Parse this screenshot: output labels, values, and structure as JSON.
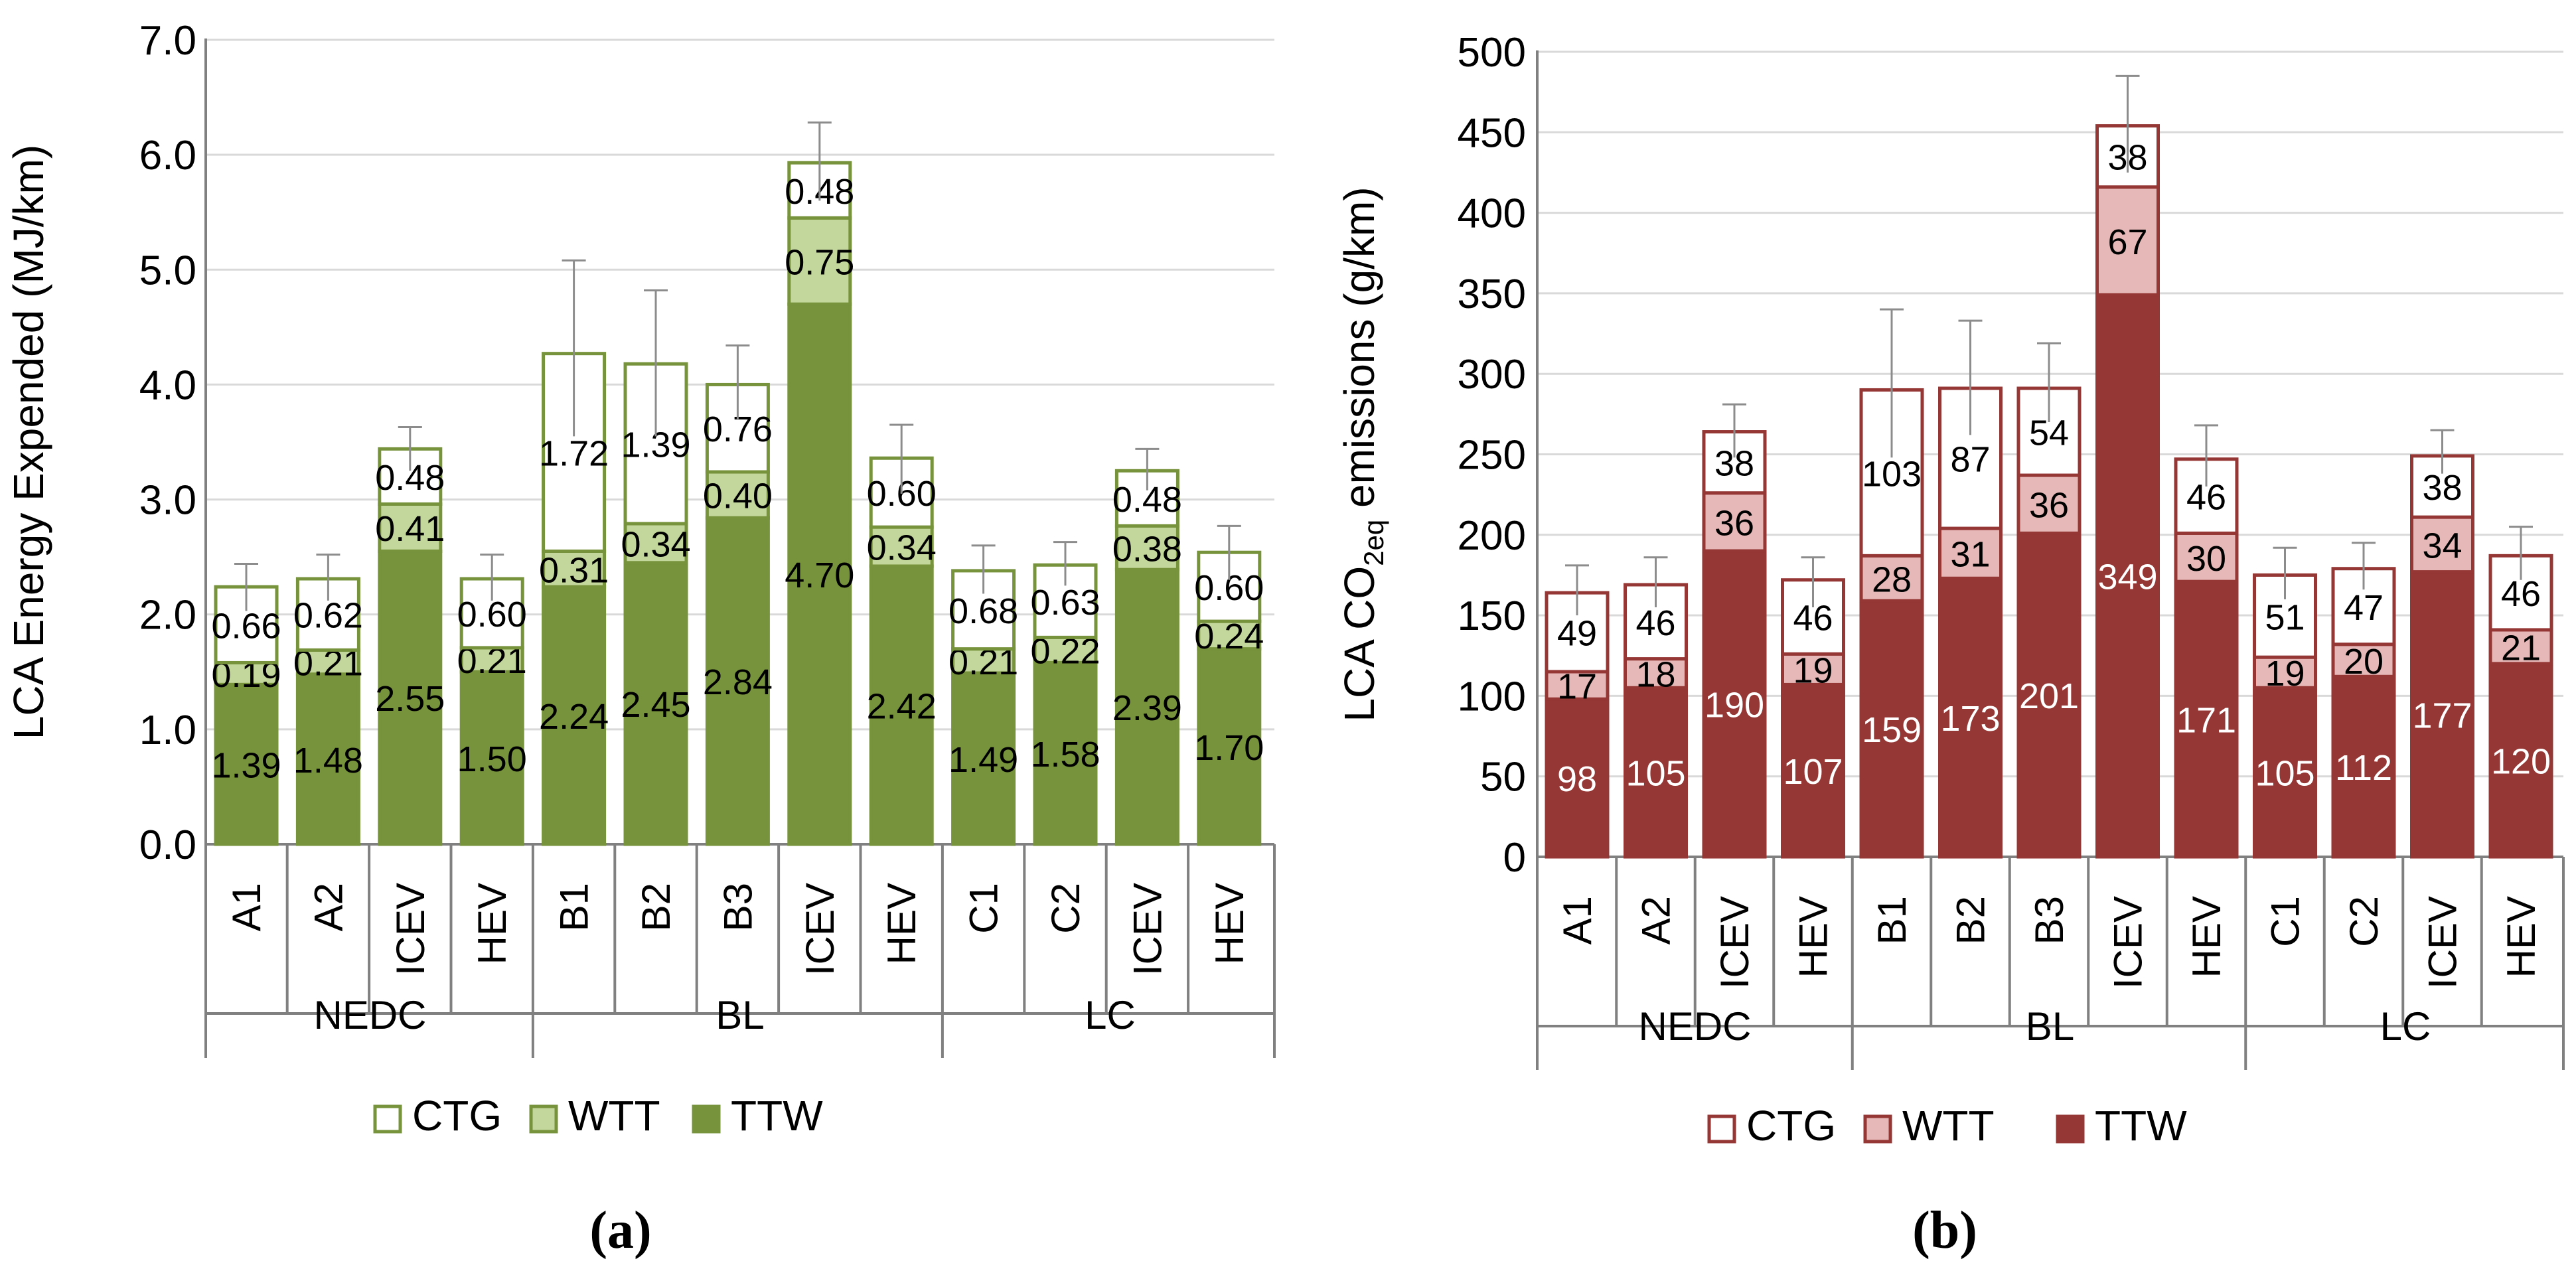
{
  "chart_data": [
    {
      "type": "bar",
      "stacked": true,
      "panel_label": "(a)",
      "ylabel": "LCA Energy Expended (MJ/km)",
      "ylim": [
        0,
        7
      ],
      "yticks": [
        "0.0",
        "1.0",
        "2.0",
        "3.0",
        "4.0",
        "5.0",
        "6.0",
        "7.0"
      ],
      "grid": true,
      "legend_position": "bottom",
      "groups": [
        {
          "name": "NEDC",
          "categories": [
            "A1",
            "A2",
            "ICEV",
            "HEV"
          ]
        },
        {
          "name": "BL",
          "categories": [
            "B1",
            "B2",
            "B3",
            "ICEV",
            "HEV"
          ]
        },
        {
          "name": "LC",
          "categories": [
            "C1",
            "C2",
            "ICEV",
            "HEV"
          ]
        }
      ],
      "categories": [
        "A1",
        "A2",
        "ICEV",
        "HEV",
        "B1",
        "B2",
        "B3",
        "ICEV",
        "HEV",
        "C1",
        "C2",
        "ICEV",
        "HEV"
      ],
      "series": [
        {
          "name": "TTW",
          "values": [
            1.39,
            1.48,
            2.55,
            1.5,
            2.24,
            2.45,
            2.84,
            4.7,
            2.42,
            1.49,
            1.58,
            2.39,
            1.7
          ],
          "labels": [
            "1.39",
            "1.48",
            "2.55",
            "1.50",
            "2.24",
            "2.45",
            "2.84",
            "4.70",
            "2.42",
            "1.49",
            "1.58",
            "2.39",
            "1.70"
          ]
        },
        {
          "name": "WTT",
          "values": [
            0.19,
            0.21,
            0.41,
            0.21,
            0.31,
            0.34,
            0.4,
            0.75,
            0.34,
            0.21,
            0.22,
            0.38,
            0.24
          ],
          "labels": [
            "0.19",
            "0.21",
            "0.41",
            "0.21",
            "0.31",
            "0.34",
            "0.40",
            "0.75",
            "0.34",
            "0.21",
            "0.22",
            "0.38",
            "0.24"
          ]
        },
        {
          "name": "CTG",
          "values": [
            0.66,
            0.62,
            0.48,
            0.6,
            1.72,
            1.39,
            0.76,
            0.48,
            0.6,
            0.68,
            0.63,
            0.48,
            0.6
          ],
          "labels": [
            "0.66",
            "0.62",
            "0.48",
            "0.60",
            "1.72",
            "1.39",
            "0.76",
            "0.48",
            "0.60",
            "0.68",
            "0.63",
            "0.48",
            "0.60"
          ]
        }
      ],
      "error_upper": [
        2.44,
        2.52,
        3.63,
        2.52,
        5.08,
        4.82,
        4.34,
        6.28,
        3.65,
        2.6,
        2.63,
        3.44,
        2.77
      ],
      "error_lower": [
        2.03,
        2.12,
        3.25,
        2.12,
        3.55,
        3.55,
        3.7,
        5.6,
        3.05,
        2.18,
        2.25,
        3.08,
        2.3
      ],
      "legend": [
        {
          "name": "CTG",
          "label": "CTG"
        },
        {
          "name": "WTT",
          "label": "WTT"
        },
        {
          "name": "TTW",
          "label": "TTW"
        }
      ],
      "colors": {
        "TTW": "#77933c",
        "WTT": "#c3d69b",
        "CTG": "#ffffff",
        "edge": "#77933c",
        "error": "#8c8c8c",
        "grid": "#d9d9d9",
        "axis": "#808080"
      }
    },
    {
      "type": "bar",
      "stacked": true,
      "panel_label": "(b)",
      "ylabel": "LCA CO",
      "ylabel_sub": "2eq",
      "ylabel_suffix": " emissions (g/km)",
      "ylim": [
        0,
        500
      ],
      "yticks": [
        "0",
        "50",
        "100",
        "150",
        "200",
        "250",
        "300",
        "350",
        "400",
        "450",
        "500"
      ],
      "grid": true,
      "legend_position": "bottom",
      "groups": [
        {
          "name": "NEDC",
          "categories": [
            "A1",
            "A2",
            "ICEV",
            "HEV"
          ]
        },
        {
          "name": "BL",
          "categories": [
            "B1",
            "B2",
            "B3",
            "ICEV",
            "HEV"
          ]
        },
        {
          "name": "LC",
          "categories": [
            "C1",
            "C2",
            "ICEV",
            "HEV"
          ]
        }
      ],
      "categories": [
        "A1",
        "A2",
        "ICEV",
        "HEV",
        "B1",
        "B2",
        "B3",
        "ICEV",
        "HEV",
        "C1",
        "C2",
        "ICEV",
        "HEV"
      ],
      "series": [
        {
          "name": "TTW",
          "values": [
            98,
            105,
            190,
            107,
            159,
            173,
            201,
            349,
            171,
            105,
            112,
            177,
            120
          ],
          "labels": [
            "98",
            "105",
            "190",
            "107",
            "159",
            "173",
            "201",
            "349",
            "171",
            "105",
            "112",
            "177",
            "120"
          ]
        },
        {
          "name": "WTT",
          "values": [
            17,
            18,
            36,
            19,
            28,
            31,
            36,
            67,
            30,
            19,
            20,
            34,
            21
          ],
          "labels": [
            "17",
            "18",
            "36",
            "19",
            "28",
            "31",
            "36",
            "67",
            "30",
            "19",
            "20",
            "34",
            "21"
          ]
        },
        {
          "name": "CTG",
          "values": [
            49,
            46,
            38,
            46,
            103,
            87,
            54,
            38,
            46,
            51,
            47,
            38,
            46
          ],
          "labels": [
            "49",
            "46",
            "38",
            "46",
            "103",
            "87",
            "54",
            "38",
            "46",
            "51",
            "47",
            "38",
            "46"
          ]
        }
      ],
      "error_upper": [
        181,
        186,
        281,
        186,
        340,
        333,
        319,
        485,
        268,
        192,
        195,
        265,
        205
      ],
      "error_lower": [
        150,
        155,
        248,
        155,
        248,
        262,
        270,
        425,
        230,
        160,
        166,
        238,
        172
      ],
      "legend": [
        {
          "name": "CTG",
          "label": "CTG"
        },
        {
          "name": "WTT",
          "label": "WTT"
        },
        {
          "name": "TTW",
          "label": "TTW"
        }
      ],
      "colors": {
        "TTW": "#953735",
        "WTT": "#e6b9b8",
        "CTG": "#ffffff",
        "edge": "#953735",
        "error": "#8c8c8c",
        "grid": "#d9d9d9",
        "axis": "#808080"
      }
    }
  ]
}
